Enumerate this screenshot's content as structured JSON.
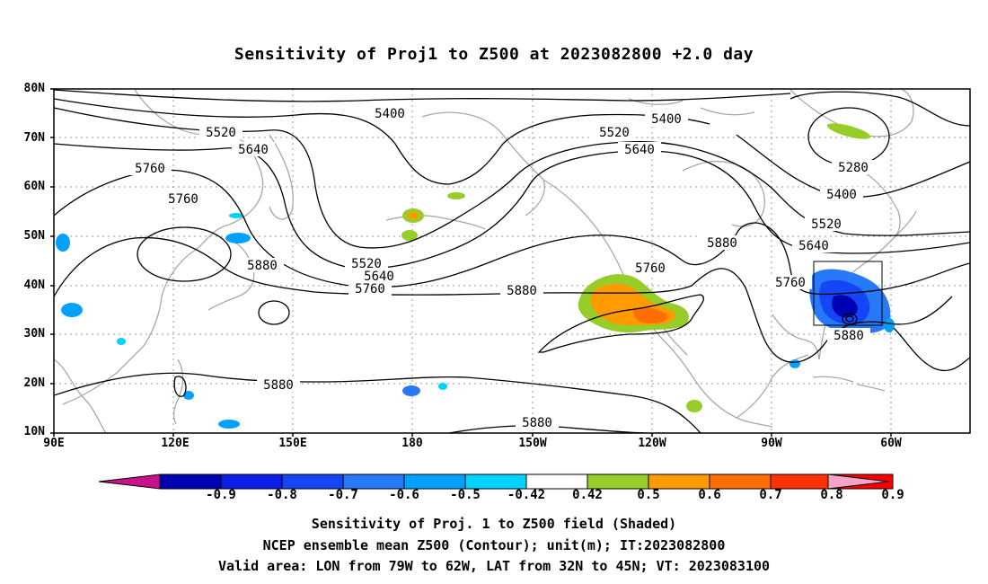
{
  "title": "Sensitivity of Proj1 to Z500 at 2023082800 +2.0 day",
  "lat_labels": [
    "80N",
    "70N",
    "60N",
    "50N",
    "40N",
    "30N",
    "20N",
    "10N"
  ],
  "lon_labels": [
    "90E",
    "120E",
    "150E",
    "180",
    "150W",
    "120W",
    "90W",
    "60W"
  ],
  "contour_labels": {
    "c5400a": "5400",
    "c5400b": "5400",
    "c5400c": "5400",
    "c5520a": "5520",
    "c5520b": "5520",
    "c5520c": "5520",
    "c5520d": "5520",
    "c5640a": "5640",
    "c5640b": "5640",
    "c5640c": "5640",
    "c5640d": "5640",
    "c5760a": "5760",
    "c5760b": "5760",
    "c5760c": "5760",
    "c5760d": "5760",
    "c5760e": "5760",
    "c5880a": "5880",
    "c5880b": "5880",
    "c5880c": "5880",
    "c5880d": "5880",
    "c5880e": "5880",
    "c5880f": "5880",
    "c5280": "5280"
  },
  "colorbar": {
    "labels": [
      "-0.9",
      "-0.8",
      "-0.7",
      "-0.6",
      "-0.5",
      "-0.42",
      "0.42",
      "0.5",
      "0.6",
      "0.7",
      "0.8",
      "0.9"
    ],
    "colors": {
      "under": "#c8128c",
      "bins": [
        "#0000b4",
        "#0a1ee6",
        "#1446f5",
        "#2878fa",
        "#00a0ff",
        "#00d2ff",
        "#ffffff",
        "#96cd28",
        "#ff9b00",
        "#ff6e00",
        "#ff3200",
        "#ff0000"
      ],
      "over": "#f4a4c8"
    }
  },
  "captions": [
    "Sensitivity of Proj. 1 to Z500 field (Shaded)",
    "NCEP ensemble mean Z500 (Contour); unit(m); IT:2023082800",
    "Valid area: LON from 79W to 62W, LAT from 32N to 45N; VT: 2023083100"
  ]
}
